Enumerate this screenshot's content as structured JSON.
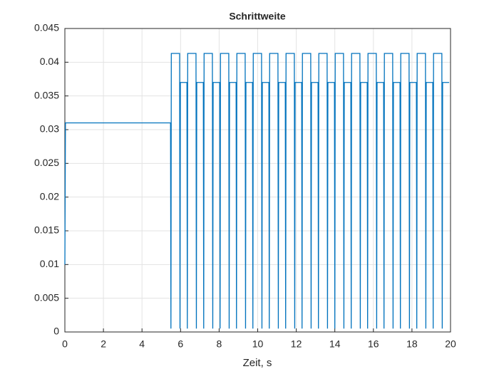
{
  "chart_data": {
    "type": "line",
    "title": "Schrittweite",
    "xlabel": "Zeit, s",
    "xlim": [
      0,
      20
    ],
    "xticks": [
      0,
      2,
      4,
      6,
      8,
      10,
      12,
      14,
      16,
      18,
      20
    ],
    "ylim": [
      0,
      0.045
    ],
    "yticks": [
      0,
      0.005,
      0.01,
      0.015,
      0.02,
      0.025,
      0.03,
      0.035,
      0.04,
      0.045
    ],
    "grid": true,
    "series": [
      {
        "color": "#0072bd",
        "x": [
          0,
          0.03,
          5.48,
          5.5,
          5.52,
          5.95,
          5.97,
          5.99,
          6.33,
          6.35,
          6.37,
          6.8,
          6.82,
          6.84,
          7.18,
          7.2,
          7.22,
          7.65,
          7.67,
          7.69,
          8.03,
          8.05,
          8.07,
          8.5,
          8.52,
          8.54,
          8.88,
          8.9,
          8.92,
          9.35,
          9.37,
          9.39,
          9.73,
          9.75,
          9.77,
          10.2,
          10.22,
          10.24,
          10.58,
          10.6,
          10.62,
          11.05,
          11.07,
          11.09,
          11.43,
          11.45,
          11.47,
          11.9,
          11.92,
          11.94,
          12.28,
          12.3,
          12.32,
          12.75,
          12.77,
          12.79,
          13.13,
          13.15,
          13.17,
          13.6,
          13.62,
          13.64,
          13.98,
          14,
          14.02,
          14.45,
          14.47,
          14.49,
          14.83,
          14.85,
          14.87,
          15.3,
          15.32,
          15.34,
          15.68,
          15.7,
          15.72,
          16.15,
          16.17,
          16.19,
          16.53,
          16.55,
          16.57,
          17,
          17.02,
          17.04,
          17.38,
          17.4,
          17.42,
          17.85,
          17.87,
          17.89,
          18.23,
          18.25,
          18.27,
          18.7,
          18.72,
          18.74,
          19.08,
          19.1,
          19.12,
          19.55,
          19.57,
          19.59,
          19.93
        ],
        "values": [
          0.01,
          0.031,
          0.031,
          0.0005,
          0.0413,
          0.0413,
          0.0005,
          0.037,
          0.037,
          0.0005,
          0.0413,
          0.0413,
          0.0005,
          0.037,
          0.037,
          0.0005,
          0.0413,
          0.0413,
          0.0005,
          0.037,
          0.037,
          0.0005,
          0.0413,
          0.0413,
          0.0005,
          0.037,
          0.037,
          0.0005,
          0.0413,
          0.0413,
          0.0005,
          0.037,
          0.037,
          0.0005,
          0.0413,
          0.0413,
          0.0005,
          0.037,
          0.037,
          0.0005,
          0.0413,
          0.0413,
          0.0005,
          0.037,
          0.037,
          0.0005,
          0.0413,
          0.0413,
          0.0005,
          0.037,
          0.037,
          0.0005,
          0.0413,
          0.0413,
          0.0005,
          0.037,
          0.037,
          0.0005,
          0.0413,
          0.0413,
          0.0005,
          0.037,
          0.037,
          0.0005,
          0.0413,
          0.0413,
          0.0005,
          0.037,
          0.037,
          0.0005,
          0.0413,
          0.0413,
          0.0005,
          0.037,
          0.037,
          0.0005,
          0.0413,
          0.0413,
          0.0005,
          0.037,
          0.037,
          0.0005,
          0.0413,
          0.0413,
          0.0005,
          0.037,
          0.037,
          0.0005,
          0.0413,
          0.0413,
          0.0005,
          0.037,
          0.037,
          0.0005,
          0.0413,
          0.0413,
          0.0005,
          0.037,
          0.037,
          0.0005,
          0.0413,
          0.0413,
          0.0005,
          0.037,
          0.037
        ]
      }
    ]
  }
}
